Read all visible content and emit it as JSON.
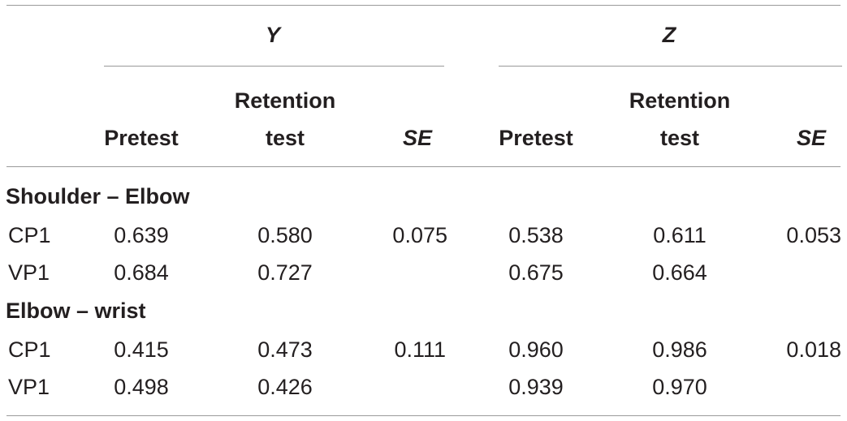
{
  "groups": {
    "y": "Y",
    "z": "Z"
  },
  "columns": {
    "pretest": "Pretest",
    "retention_line1": "Retention",
    "retention_line2": "test",
    "se": "SE"
  },
  "sections": [
    {
      "title": "Shoulder – Elbow",
      "rows": [
        {
          "label": "CP1",
          "y_pre": "0.639",
          "y_ret": "0.580",
          "y_se": "0.075",
          "z_pre": "0.538",
          "z_ret": "0.611",
          "z_se": "0.053"
        },
        {
          "label": "VP1",
          "y_pre": "0.684",
          "y_ret": "0.727",
          "y_se": "",
          "z_pre": "0.675",
          "z_ret": "0.664",
          "z_se": ""
        }
      ]
    },
    {
      "title": "Elbow – wrist",
      "rows": [
        {
          "label": "CP1",
          "y_pre": "0.415",
          "y_ret": "0.473",
          "y_se": "0.111",
          "z_pre": "0.960",
          "z_ret": "0.986",
          "z_se": "0.018"
        },
        {
          "label": "VP1",
          "y_pre": "0.498",
          "y_ret": "0.426",
          "y_se": "",
          "z_pre": "0.939",
          "z_ret": "0.970",
          "z_se": ""
        }
      ]
    }
  ]
}
